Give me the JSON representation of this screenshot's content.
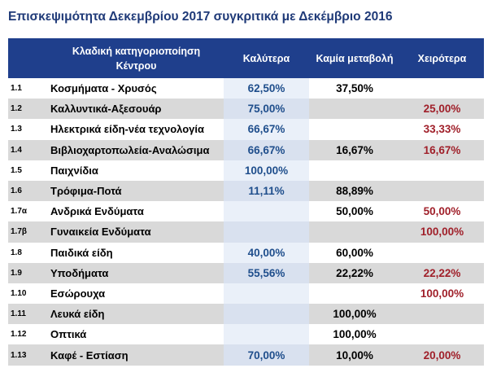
{
  "chart_data": {
    "type": "table",
    "title": "Επισκεψιμότητα Δεκεμβρίου 2017 συγκριτικά με Δεκέμβριο 2016",
    "columns": {
      "category": "Κλαδική κατηγοριοποίηση Κέντρου",
      "better": "Καλύτερα",
      "same": "Καμία μεταβολή",
      "worse": "Χειρότερα"
    },
    "rows": [
      {
        "code": "1.1",
        "category": "Κοσμήματα - Χρυσός",
        "better": "62,50%",
        "same": "37,50%",
        "worse": ""
      },
      {
        "code": "1.2",
        "category": "Καλλυντικά-Αξεσουάρ",
        "better": "75,00%",
        "same": "",
        "worse": "25,00%"
      },
      {
        "code": "1.3",
        "category": "Ηλεκτρικά είδη-νέα τεχνολογία",
        "better": "66,67%",
        "same": "",
        "worse": "33,33%"
      },
      {
        "code": "1.4",
        "category": "Βιβλιοχαρτοπωλεία-Αναλώσιμα",
        "better": "66,67%",
        "same": "16,67%",
        "worse": "16,67%"
      },
      {
        "code": "1.5",
        "category": "Παιχνίδια",
        "better": "100,00%",
        "same": "",
        "worse": ""
      },
      {
        "code": "1.6",
        "category": "Τρόφιμα-Ποτά",
        "better": "11,11%",
        "same": "88,89%",
        "worse": ""
      },
      {
        "code": "1.7α",
        "category": "Ανδρικά Ενδύματα",
        "better": "",
        "same": "50,00%",
        "worse": "50,00%"
      },
      {
        "code": "1.7β",
        "category": "Γυναικεία Ενδύματα",
        "better": "",
        "same": "",
        "worse": "100,00%"
      },
      {
        "code": "1.8",
        "category": "Παιδικά είδη",
        "better": "40,00%",
        "same": "60,00%",
        "worse": ""
      },
      {
        "code": "1.9",
        "category": "Υποδήματα",
        "better": "55,56%",
        "same": "22,22%",
        "worse": "22,22%"
      },
      {
        "code": "1.10",
        "category": "Εσώρουχα",
        "better": "",
        "same": "",
        "worse": "100,00%"
      },
      {
        "code": "1.11",
        "category": "Λευκά είδη",
        "better": "",
        "same": "100,00%",
        "worse": ""
      },
      {
        "code": "1.12",
        "category": "Οπτικά",
        "better": "",
        "same": "100,00%",
        "worse": ""
      },
      {
        "code": "1.13",
        "category": "Καφέ - Εστίαση",
        "better": "70,00%",
        "same": "10,00%",
        "worse": "20,00%"
      }
    ]
  }
}
